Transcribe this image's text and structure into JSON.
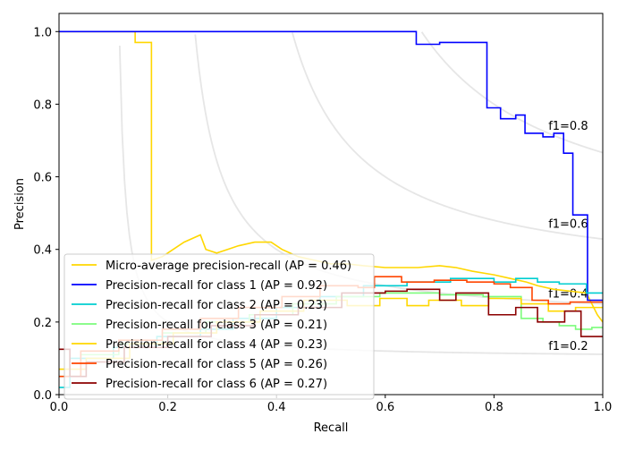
{
  "chart_data": {
    "type": "line",
    "title": "",
    "xlabel": "Recall",
    "ylabel": "Precision",
    "xlim": [
      0.0,
      1.0
    ],
    "ylim": [
      0.0,
      1.05
    ],
    "xticks": [
      0.0,
      0.2,
      0.4,
      0.6,
      0.8,
      1.0
    ],
    "yticks": [
      0.0,
      0.2,
      0.4,
      0.6,
      0.8,
      1.0
    ],
    "xtick_labels": [
      "0.0",
      "0.2",
      "0.4",
      "0.6",
      "0.8",
      "1.0"
    ],
    "ytick_labels": [
      "0.0",
      "0.2",
      "0.4",
      "0.6",
      "0.8",
      "1.0"
    ],
    "legend_position": "lower-left",
    "iso_f1": [
      {
        "f1": 0.2,
        "label": "f1=0.2"
      },
      {
        "f1": 0.4,
        "label": "f1=0.4"
      },
      {
        "f1": 0.6,
        "label": "f1=0.6"
      },
      {
        "f1": 0.8,
        "label": "f1=0.8"
      }
    ],
    "series": [
      {
        "name": "Micro-average precision-recall (AP = 0.46)",
        "color": "#ffd700",
        "points": [
          [
            0.0,
            1.0
          ],
          [
            0.14,
            1.0
          ],
          [
            0.14,
            0.97
          ],
          [
            0.17,
            0.97
          ],
          [
            0.17,
            0.37
          ],
          [
            0.19,
            0.38
          ],
          [
            0.21,
            0.4
          ],
          [
            0.23,
            0.42
          ],
          [
            0.26,
            0.44
          ],
          [
            0.27,
            0.4
          ],
          [
            0.29,
            0.39
          ],
          [
            0.31,
            0.4
          ],
          [
            0.33,
            0.41
          ],
          [
            0.36,
            0.42
          ],
          [
            0.39,
            0.42
          ],
          [
            0.41,
            0.4
          ],
          [
            0.44,
            0.38
          ],
          [
            0.47,
            0.37
          ],
          [
            0.5,
            0.36
          ],
          [
            0.53,
            0.36
          ],
          [
            0.56,
            0.355
          ],
          [
            0.6,
            0.35
          ],
          [
            0.63,
            0.35
          ],
          [
            0.66,
            0.35
          ],
          [
            0.7,
            0.355
          ],
          [
            0.73,
            0.35
          ],
          [
            0.76,
            0.34
          ],
          [
            0.8,
            0.33
          ],
          [
            0.83,
            0.32
          ],
          [
            0.86,
            0.31
          ],
          [
            0.88,
            0.3
          ],
          [
            0.91,
            0.29
          ],
          [
            0.94,
            0.285
          ],
          [
            0.97,
            0.28
          ],
          [
            0.99,
            0.22
          ],
          [
            1.0,
            0.2
          ]
        ]
      },
      {
        "name": "Precision-recall for class 1 (AP = 0.92)",
        "color": "#0000ff",
        "points": [
          [
            0.0,
            1.0
          ],
          [
            0.657,
            1.0
          ],
          [
            0.657,
            0.965
          ],
          [
            0.7,
            0.965
          ],
          [
            0.7,
            0.97
          ],
          [
            0.787,
            0.97
          ],
          [
            0.787,
            0.79
          ],
          [
            0.812,
            0.79
          ],
          [
            0.812,
            0.76
          ],
          [
            0.84,
            0.76
          ],
          [
            0.84,
            0.77
          ],
          [
            0.857,
            0.77
          ],
          [
            0.857,
            0.72
          ],
          [
            0.89,
            0.72
          ],
          [
            0.89,
            0.71
          ],
          [
            0.91,
            0.71
          ],
          [
            0.91,
            0.72
          ],
          [
            0.928,
            0.72
          ],
          [
            0.928,
            0.665
          ],
          [
            0.945,
            0.665
          ],
          [
            0.945,
            0.495
          ],
          [
            0.972,
            0.495
          ],
          [
            0.972,
            0.26
          ],
          [
            1.0,
            0.26
          ]
        ]
      },
      {
        "name": "Precision-recall for class 2 (AP = 0.23)",
        "color": "#00ced1",
        "points": [
          [
            0.0,
            0.02
          ],
          [
            0.02,
            0.02
          ],
          [
            0.02,
            0.1
          ],
          [
            0.1,
            0.1
          ],
          [
            0.1,
            0.13
          ],
          [
            0.18,
            0.13
          ],
          [
            0.18,
            0.16
          ],
          [
            0.26,
            0.16
          ],
          [
            0.26,
            0.18
          ],
          [
            0.32,
            0.18
          ],
          [
            0.32,
            0.21
          ],
          [
            0.4,
            0.21
          ],
          [
            0.4,
            0.24
          ],
          [
            0.48,
            0.24
          ],
          [
            0.48,
            0.27
          ],
          [
            0.56,
            0.27
          ],
          [
            0.56,
            0.3
          ],
          [
            0.64,
            0.3
          ],
          [
            0.64,
            0.31
          ],
          [
            0.72,
            0.31
          ],
          [
            0.72,
            0.32
          ],
          [
            0.8,
            0.32
          ],
          [
            0.8,
            0.31
          ],
          [
            0.84,
            0.31
          ],
          [
            0.84,
            0.32
          ],
          [
            0.88,
            0.32
          ],
          [
            0.88,
            0.31
          ],
          [
            0.92,
            0.31
          ],
          [
            0.92,
            0.305
          ],
          [
            0.97,
            0.305
          ],
          [
            0.97,
            0.28
          ],
          [
            1.0,
            0.28
          ]
        ]
      },
      {
        "name": "Precision-recall for class 3 (AP = 0.21)",
        "color": "#7cfc7c",
        "points": [
          [
            0.0,
            0.05
          ],
          [
            0.04,
            0.05
          ],
          [
            0.04,
            0.11
          ],
          [
            0.11,
            0.11
          ],
          [
            0.11,
            0.14
          ],
          [
            0.19,
            0.14
          ],
          [
            0.19,
            0.17
          ],
          [
            0.27,
            0.17
          ],
          [
            0.27,
            0.2
          ],
          [
            0.35,
            0.2
          ],
          [
            0.35,
            0.22
          ],
          [
            0.43,
            0.22
          ],
          [
            0.43,
            0.25
          ],
          [
            0.51,
            0.25
          ],
          [
            0.51,
            0.27
          ],
          [
            0.59,
            0.27
          ],
          [
            0.59,
            0.28
          ],
          [
            0.7,
            0.28
          ],
          [
            0.7,
            0.275
          ],
          [
            0.78,
            0.275
          ],
          [
            0.78,
            0.27
          ],
          [
            0.85,
            0.27
          ],
          [
            0.85,
            0.21
          ],
          [
            0.89,
            0.21
          ],
          [
            0.89,
            0.2
          ],
          [
            0.92,
            0.2
          ],
          [
            0.92,
            0.19
          ],
          [
            0.95,
            0.19
          ],
          [
            0.95,
            0.18
          ],
          [
            0.98,
            0.18
          ],
          [
            0.98,
            0.185
          ],
          [
            1.0,
            0.185
          ]
        ]
      },
      {
        "name": "Precision-recall for class 4 (AP = 0.23)",
        "color": "#ffd700",
        "points": [
          [
            0.0,
            0.07
          ],
          [
            0.05,
            0.07
          ],
          [
            0.05,
            0.1
          ],
          [
            0.13,
            0.1
          ],
          [
            0.13,
            0.14
          ],
          [
            0.21,
            0.14
          ],
          [
            0.21,
            0.17
          ],
          [
            0.29,
            0.17
          ],
          [
            0.29,
            0.2
          ],
          [
            0.37,
            0.2
          ],
          [
            0.37,
            0.23
          ],
          [
            0.45,
            0.23
          ],
          [
            0.45,
            0.26
          ],
          [
            0.53,
            0.26
          ],
          [
            0.53,
            0.245
          ],
          [
            0.59,
            0.245
          ],
          [
            0.59,
            0.265
          ],
          [
            0.64,
            0.265
          ],
          [
            0.64,
            0.245
          ],
          [
            0.68,
            0.245
          ],
          [
            0.68,
            0.26
          ],
          [
            0.74,
            0.26
          ],
          [
            0.74,
            0.245
          ],
          [
            0.79,
            0.245
          ],
          [
            0.79,
            0.265
          ],
          [
            0.85,
            0.265
          ],
          [
            0.85,
            0.25
          ],
          [
            0.9,
            0.25
          ],
          [
            0.9,
            0.23
          ],
          [
            0.95,
            0.23
          ],
          [
            0.95,
            0.24
          ],
          [
            1.0,
            0.24
          ]
        ]
      },
      {
        "name": "Precision-recall for class 5 (AP = 0.26)",
        "color": "#ff4500",
        "points": [
          [
            0.0,
            0.05
          ],
          [
            0.04,
            0.05
          ],
          [
            0.04,
            0.12
          ],
          [
            0.11,
            0.12
          ],
          [
            0.11,
            0.15
          ],
          [
            0.19,
            0.15
          ],
          [
            0.19,
            0.18
          ],
          [
            0.26,
            0.18
          ],
          [
            0.26,
            0.21
          ],
          [
            0.33,
            0.21
          ],
          [
            0.33,
            0.24
          ],
          [
            0.41,
            0.24
          ],
          [
            0.41,
            0.27
          ],
          [
            0.48,
            0.27
          ],
          [
            0.48,
            0.3
          ],
          [
            0.55,
            0.3
          ],
          [
            0.55,
            0.295
          ],
          [
            0.58,
            0.295
          ],
          [
            0.58,
            0.325
          ],
          [
            0.63,
            0.325
          ],
          [
            0.63,
            0.31
          ],
          [
            0.69,
            0.31
          ],
          [
            0.69,
            0.315
          ],
          [
            0.75,
            0.315
          ],
          [
            0.75,
            0.31
          ],
          [
            0.8,
            0.31
          ],
          [
            0.8,
            0.305
          ],
          [
            0.83,
            0.305
          ],
          [
            0.83,
            0.295
          ],
          [
            0.87,
            0.295
          ],
          [
            0.87,
            0.26
          ],
          [
            0.9,
            0.26
          ],
          [
            0.9,
            0.25
          ],
          [
            0.94,
            0.25
          ],
          [
            0.94,
            0.255
          ],
          [
            1.0,
            0.255
          ]
        ]
      },
      {
        "name": "Precision-recall for class 6 (AP = 0.27)",
        "color": "#8b0000",
        "points": [
          [
            0.0,
            0.125
          ],
          [
            0.02,
            0.125
          ],
          [
            0.02,
            0.05
          ],
          [
            0.05,
            0.05
          ],
          [
            0.05,
            0.09
          ],
          [
            0.12,
            0.09
          ],
          [
            0.12,
            0.13
          ],
          [
            0.2,
            0.13
          ],
          [
            0.2,
            0.16
          ],
          [
            0.28,
            0.16
          ],
          [
            0.28,
            0.19
          ],
          [
            0.36,
            0.19
          ],
          [
            0.36,
            0.22
          ],
          [
            0.44,
            0.22
          ],
          [
            0.44,
            0.24
          ],
          [
            0.52,
            0.24
          ],
          [
            0.52,
            0.28
          ],
          [
            0.6,
            0.28
          ],
          [
            0.6,
            0.285
          ],
          [
            0.64,
            0.285
          ],
          [
            0.64,
            0.29
          ],
          [
            0.7,
            0.29
          ],
          [
            0.7,
            0.26
          ],
          [
            0.73,
            0.26
          ],
          [
            0.73,
            0.28
          ],
          [
            0.79,
            0.28
          ],
          [
            0.79,
            0.22
          ],
          [
            0.84,
            0.22
          ],
          [
            0.84,
            0.24
          ],
          [
            0.88,
            0.24
          ],
          [
            0.88,
            0.2
          ],
          [
            0.93,
            0.2
          ],
          [
            0.93,
            0.23
          ],
          [
            0.96,
            0.23
          ],
          [
            0.96,
            0.16
          ],
          [
            1.0,
            0.16
          ]
        ]
      }
    ]
  }
}
